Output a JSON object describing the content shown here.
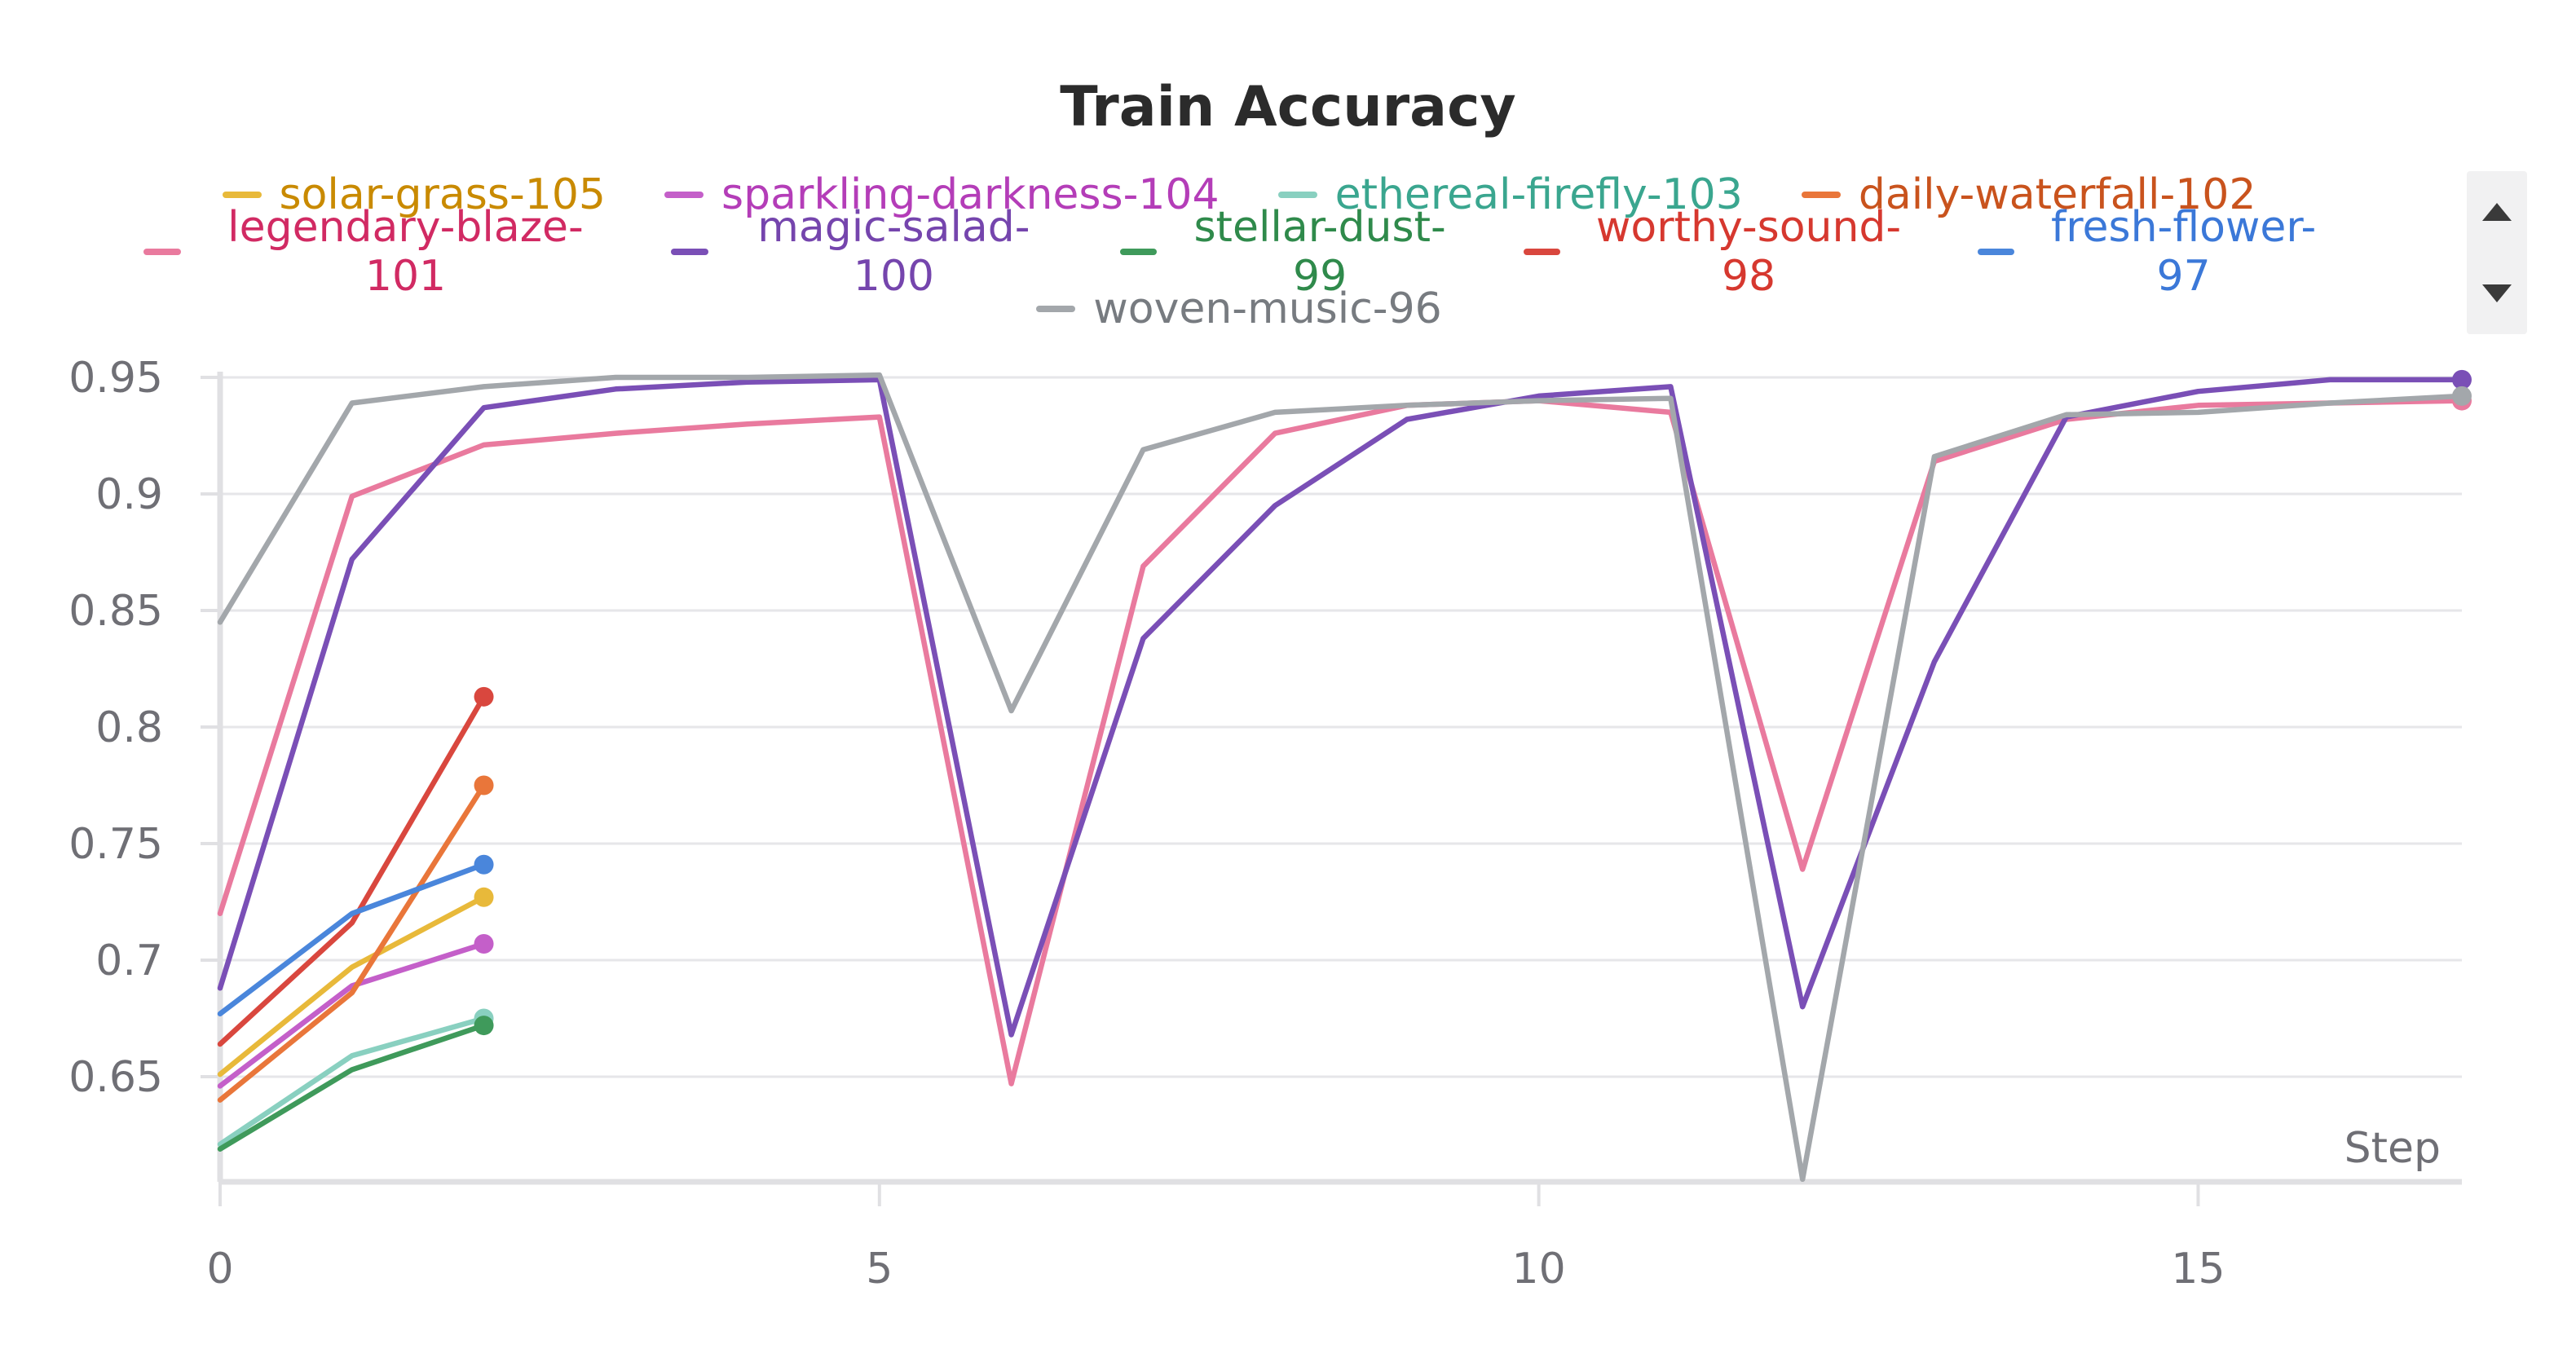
{
  "chart_data": {
    "type": "line",
    "title": "Train Accuracy",
    "xlabel": "Step",
    "ylabel": "",
    "xlim": [
      0,
      17
    ],
    "ylim": [
      0.606,
      0.95
    ],
    "xticks": [
      0,
      5,
      10,
      15
    ],
    "yticks": [
      0.65,
      0.7,
      0.75,
      0.8,
      0.85,
      0.9,
      0.95
    ],
    "ytick_labels": [
      "0.65",
      "0.7",
      "0.75",
      "0.8",
      "0.85",
      "0.9",
      "0.95"
    ],
    "grid": "horizontal",
    "legend_position": "top",
    "series": [
      {
        "name": "solar-grass-105",
        "color": "#e8b93a",
        "text_color": "#c98a00",
        "x": [
          0,
          1,
          2
        ],
        "y": [
          0.651,
          0.697,
          0.727
        ]
      },
      {
        "name": "sparkling-darkness-104",
        "color": "#c45fc9",
        "text_color": "#b43db8",
        "x": [
          0,
          1,
          2
        ],
        "y": [
          0.646,
          0.689,
          0.707
        ]
      },
      {
        "name": "ethereal-firefly-103",
        "color": "#89d0c0",
        "text_color": "#3aa68f",
        "x": [
          0,
          1,
          2
        ],
        "y": [
          0.621,
          0.659,
          0.675
        ]
      },
      {
        "name": "daily-waterfall-102",
        "color": "#e9763a",
        "text_color": "#c9531d",
        "x": [
          0,
          1,
          2
        ],
        "y": [
          0.64,
          0.686,
          0.775
        ]
      },
      {
        "name": "legendary-blaze-101",
        "color": "#e97a9e",
        "text_color": "#d12a63",
        "x": [
          0,
          1,
          2,
          3,
          4,
          5,
          6,
          7,
          8,
          9,
          10,
          11,
          12,
          13,
          14,
          15,
          16,
          17
        ],
        "y": [
          0.72,
          0.899,
          0.921,
          0.926,
          0.93,
          0.933,
          0.647,
          0.869,
          0.926,
          0.938,
          0.94,
          0.935,
          0.739,
          0.914,
          0.932,
          0.938,
          0.939,
          0.94
        ]
      },
      {
        "name": "magic-salad-100",
        "color": "#7a4fb6",
        "text_color": "#7545ad",
        "x": [
          0,
          1,
          2,
          3,
          4,
          5,
          6,
          7,
          8,
          9,
          10,
          11,
          12,
          13,
          14,
          15,
          16,
          17
        ],
        "y": [
          0.688,
          0.872,
          0.937,
          0.945,
          0.948,
          0.949,
          0.668,
          0.838,
          0.895,
          0.932,
          0.942,
          0.946,
          0.68,
          0.828,
          0.933,
          0.944,
          0.949,
          0.949
        ]
      },
      {
        "name": "stellar-dust-99",
        "color": "#3f9a5b",
        "text_color": "#2f8a4b",
        "x": [
          0,
          1,
          2
        ],
        "y": [
          0.619,
          0.653,
          0.672
        ]
      },
      {
        "name": "worthy-sound-98",
        "color": "#d9473e",
        "text_color": "#d6382f",
        "x": [
          0,
          1,
          2
        ],
        "y": [
          0.664,
          0.716,
          0.813
        ]
      },
      {
        "name": "fresh-flower-97",
        "color": "#4a86db",
        "text_color": "#3b78d8",
        "x": [
          0,
          1,
          2
        ],
        "y": [
          0.677,
          0.72,
          0.741
        ]
      },
      {
        "name": "woven-music-96",
        "color": "#a3a7ab",
        "text_color": "#777b80",
        "x": [
          0,
          1,
          2,
          3,
          4,
          5,
          6,
          7,
          8,
          9,
          10,
          11,
          12,
          13,
          14,
          15,
          16,
          17
        ],
        "y": [
          0.845,
          0.939,
          0.946,
          0.95,
          0.95,
          0.951,
          0.807,
          0.919,
          0.935,
          0.938,
          0.94,
          0.941,
          0.606,
          0.916,
          0.934,
          0.935,
          0.939,
          0.942
        ]
      }
    ]
  },
  "legend": {
    "scroll_up_icon": "triangle-up-icon",
    "scroll_down_icon": "triangle-down-icon"
  }
}
